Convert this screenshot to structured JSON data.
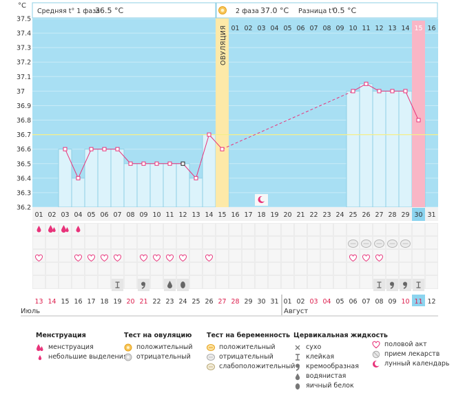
{
  "header": {
    "ylabel": "°C",
    "phase1_label": "Средняя t° 1 фаза",
    "phase1_value": "36.5 °C",
    "phase2_label": "2 фаза",
    "phase2_value": "37.0 °C",
    "diff_label": "Разница t°",
    "diff_value": "0.5 °C"
  },
  "ovulation_label": "ОВУЛЯЦИЯ",
  "cycle_days": [
    "01",
    "02",
    "03",
    "04",
    "05",
    "06",
    "07",
    "08",
    "09",
    "10",
    "11",
    "12",
    "13",
    "14",
    "15",
    "16",
    "17",
    "18",
    "19",
    "20",
    "21",
    "22",
    "23",
    "24",
    "25",
    "26",
    "27",
    "28",
    "29",
    "30",
    "31"
  ],
  "phase2_days": [
    "01",
    "02",
    "03",
    "04",
    "05",
    "06",
    "07",
    "08",
    "09",
    "10",
    "11",
    "12",
    "13",
    "14",
    "15",
    "16"
  ],
  "dates": [
    "13",
    "14",
    "15",
    "16",
    "17",
    "18",
    "19",
    "20",
    "21",
    "22",
    "23",
    "24",
    "25",
    "26",
    "27",
    "28",
    "29",
    "30",
    "31",
    "01",
    "02",
    "03",
    "04",
    "05",
    "06",
    "07",
    "08",
    "09",
    "10",
    "11",
    "12"
  ],
  "date_red_indices": [
    0,
    1,
    7,
    8,
    14,
    15,
    21,
    22,
    28,
    29
  ],
  "today_index": 29,
  "months": [
    "Июль",
    "Август"
  ],
  "colors": {
    "chart_bg": "#a8dff3",
    "bar": "#dcf3fb",
    "bar_border": "#8ecfe6",
    "line": "#e8337a",
    "ovulation": "#fde9a8",
    "today_band": "#f9b6c6",
    "baseline": "#f5ef8a",
    "red_text": "#dc1c4b",
    "today_cell": "#8cd4ef"
  },
  "chart_data": {
    "type": "line",
    "x": [
      3,
      4,
      5,
      6,
      7,
      8,
      9,
      10,
      11,
      12,
      13,
      14,
      15,
      25,
      26,
      27,
      28,
      29,
      30
    ],
    "y": [
      36.6,
      36.4,
      36.6,
      36.6,
      36.6,
      36.5,
      36.5,
      36.5,
      36.5,
      36.5,
      36.4,
      36.7,
      36.6,
      37.0,
      37.05,
      37.0,
      37.0,
      37.0,
      36.8
    ],
    "dashed_segment": [
      15,
      25
    ],
    "ylim": [
      36.2,
      37.5
    ],
    "yticks": [
      "36.2",
      "36.3",
      "36.4",
      "36.5",
      "36.6",
      "36.7",
      "36.8",
      "36.9",
      "37",
      "37.1",
      "37.2",
      "37.3",
      "37.4",
      "37.5"
    ],
    "ovulation_day": 15,
    "coverline": 36.7,
    "today_day": 30,
    "lunar_day": 18
  },
  "symptoms": {
    "menstruation": [
      {
        "day": 1,
        "level": 1
      },
      {
        "day": 2,
        "level": 2
      },
      {
        "day": 3,
        "level": 2
      },
      {
        "day": 4,
        "level": 1
      }
    ],
    "pregnancy_test": [
      25,
      26,
      27,
      28,
      29
    ],
    "intercourse": [
      1,
      4,
      5,
      6,
      7,
      9,
      10,
      11,
      12,
      14,
      25,
      26,
      27
    ],
    "cervical": [
      {
        "day": 7,
        "type": "sticky"
      },
      {
        "day": 9,
        "type": "creamy"
      },
      {
        "day": 11,
        "type": "watery"
      },
      {
        "day": 12,
        "type": "eggwhite"
      },
      {
        "day": 27,
        "type": "sticky"
      },
      {
        "day": 28,
        "type": "creamy"
      },
      {
        "day": 29,
        "type": "creamy"
      },
      {
        "day": 30,
        "type": "sticky"
      }
    ]
  },
  "legend": {
    "menstruation": {
      "title": "Менструация",
      "items": [
        "менструация",
        "небольшие выделения"
      ]
    },
    "ovulation_test": {
      "title": "Тест на овуляцию",
      "items": [
        "положительный",
        "отрицательный"
      ]
    },
    "pregnancy_test": {
      "title": "Тест на беременность",
      "items": [
        "положительный",
        "отрицательный",
        "слабоположительный"
      ]
    },
    "cervical_fluid": {
      "title": "Цервикальная жидкость",
      "items": [
        "сухо",
        "клейкая",
        "кремообразная",
        "водянистая",
        "яичный белок"
      ]
    },
    "other": {
      "items": [
        "половой акт",
        "прием лекарств",
        "лунный календарь"
      ]
    }
  }
}
